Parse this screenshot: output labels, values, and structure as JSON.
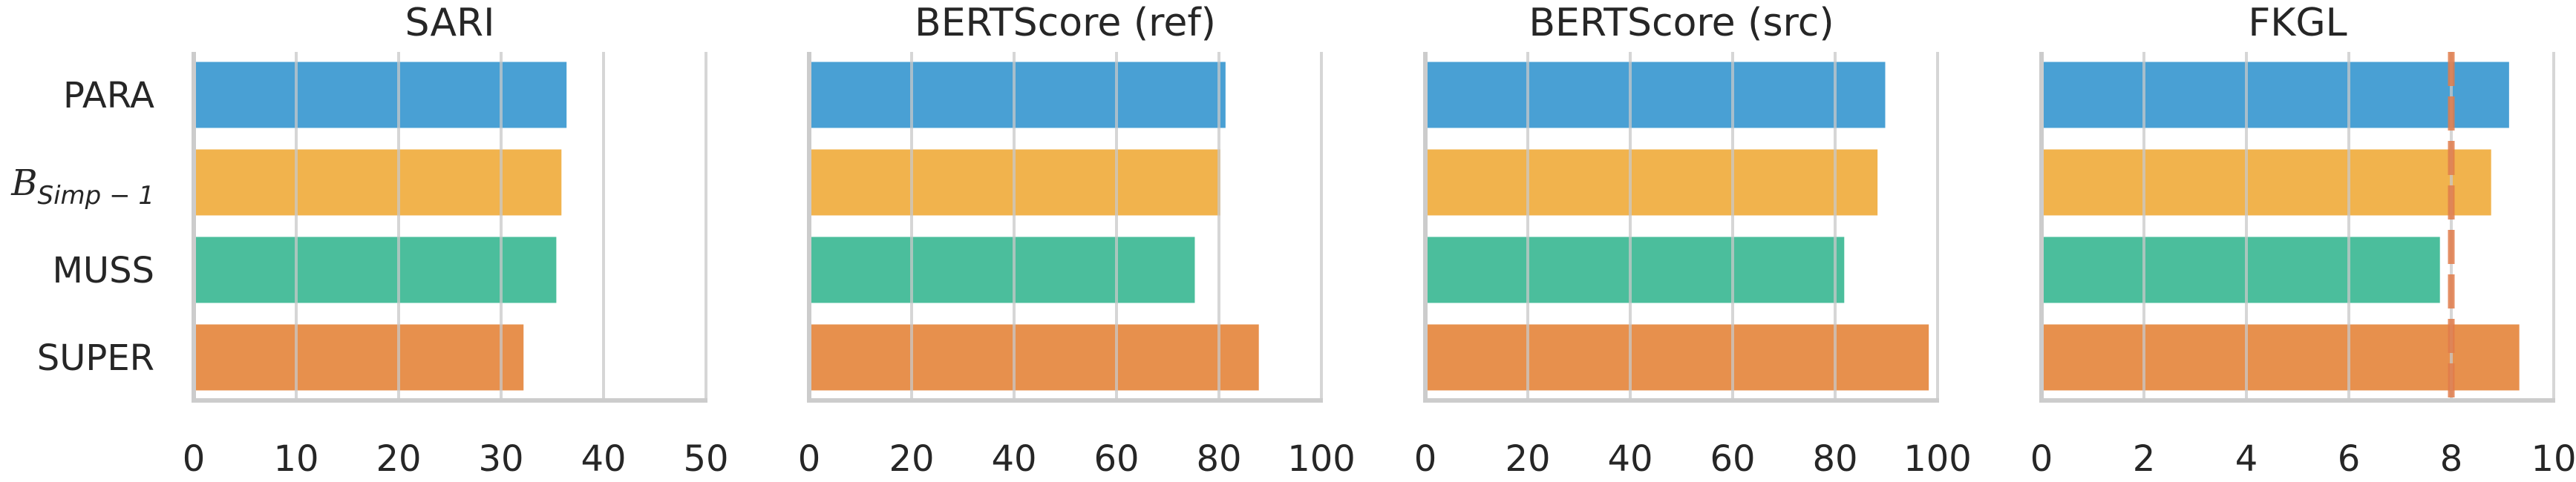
{
  "chart_data": [
    {
      "type": "bar",
      "orientation": "horizontal",
      "title": "SARI",
      "categories": [
        "PARA",
        "B_Simp-1",
        "MUSS",
        "SUPER"
      ],
      "values": [
        36.5,
        36.0,
        35.5,
        32.3
      ],
      "xlim": [
        0,
        50
      ],
      "xticks": [
        0,
        10,
        20,
        30,
        40,
        50
      ],
      "grid": true
    },
    {
      "type": "bar",
      "orientation": "horizontal",
      "title": "BERTScore (ref)",
      "categories": [
        "PARA",
        "B_Simp-1",
        "MUSS",
        "SUPER"
      ],
      "values": [
        81.5,
        80.5,
        75.5,
        88.0
      ],
      "xlim": [
        0,
        100
      ],
      "xticks": [
        0,
        20,
        40,
        60,
        80,
        100
      ],
      "grid": true
    },
    {
      "type": "bar",
      "orientation": "horizontal",
      "title": "BERTScore (src)",
      "categories": [
        "PARA",
        "B_Simp-1",
        "MUSS",
        "SUPER"
      ],
      "values": [
        90.0,
        88.5,
        82.0,
        98.5
      ],
      "xlim": [
        0,
        100
      ],
      "xticks": [
        0,
        20,
        40,
        60,
        80,
        100
      ],
      "grid": true
    },
    {
      "type": "bar",
      "orientation": "horizontal",
      "title": "FKGL",
      "categories": [
        "PARA",
        "B_Simp-1",
        "MUSS",
        "SUPER"
      ],
      "values": [
        9.15,
        8.8,
        7.8,
        9.35
      ],
      "xlim": [
        0,
        10
      ],
      "xticks": [
        0,
        2,
        4,
        6,
        8,
        10
      ],
      "grid": true,
      "reference_line": 8.0
    }
  ],
  "category_labels": [
    {
      "text": "PARA"
    },
    {
      "base": "B",
      "sub": "Simp − 1"
    },
    {
      "text": "MUSS"
    },
    {
      "text": "SUPER"
    }
  ],
  "colors": {
    "bars": [
      "#3a98d0",
      "#f0ad3e",
      "#3cb994",
      "#e5873e"
    ],
    "reference_line": "#e07b4a",
    "axis": "#cccccc",
    "grid": "#c8c8c8"
  }
}
